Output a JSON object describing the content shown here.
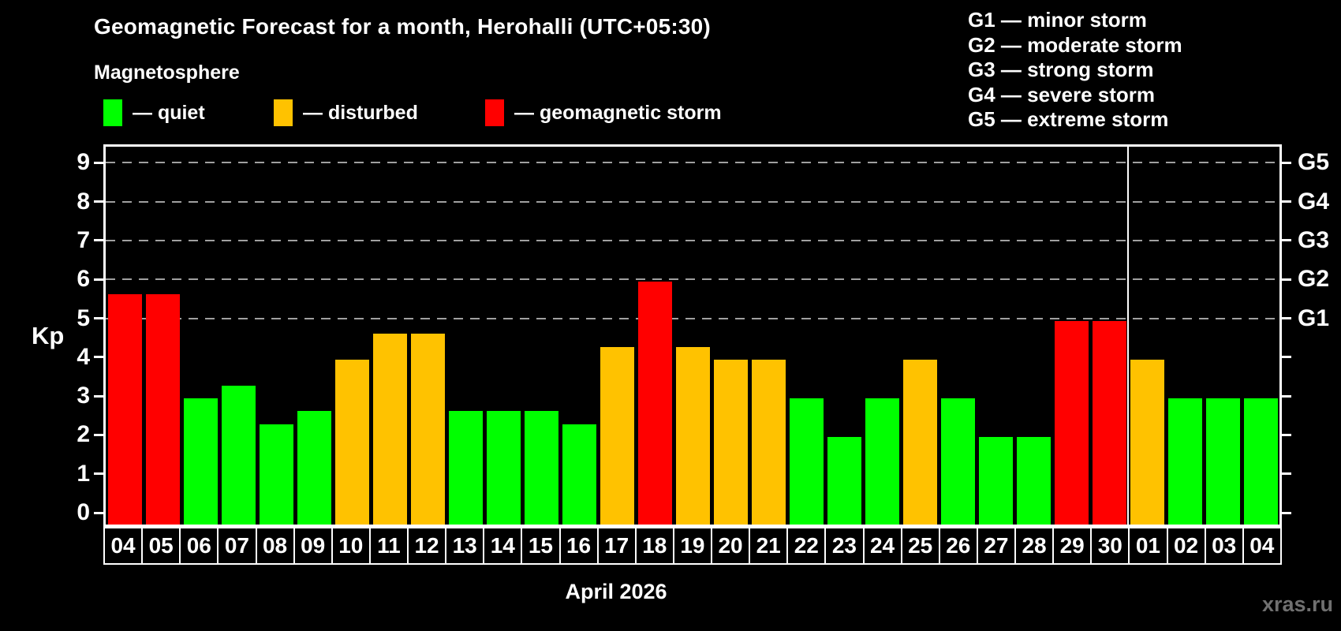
{
  "title": "Geomagnetic Forecast for a month, Herohalli (UTC+05:30)",
  "subtitle": "Magnetosphere",
  "legend": {
    "items": [
      {
        "key": "quiet",
        "label": "— quiet"
      },
      {
        "key": "disturbed",
        "label": "— disturbed"
      },
      {
        "key": "storm",
        "label": "— geomagnetic storm"
      }
    ]
  },
  "g_legend": {
    "lines": [
      "G1 — minor storm",
      "G2 — moderate storm",
      "G3 — strong storm",
      "G4 — severe storm",
      "G5 — extreme storm"
    ]
  },
  "y_axis": {
    "label": "Kp",
    "ticks": [
      0,
      1,
      2,
      3,
      4,
      5,
      6,
      7,
      8,
      9
    ]
  },
  "right_axis": {
    "labels": [
      {
        "text": "G1",
        "value": 5
      },
      {
        "text": "G2",
        "value": 6
      },
      {
        "text": "G3",
        "value": 7
      },
      {
        "text": "G4",
        "value": 8
      },
      {
        "text": "G5",
        "value": 9
      }
    ]
  },
  "x_axis": {
    "caption": "April 2026"
  },
  "watermark": "xras.ru",
  "colors": {
    "quiet": "#00ff00",
    "disturbed": "#ffc200",
    "storm": "#ff0000",
    "background": "#000000",
    "axis": "#ffffff",
    "gridline": "#a0a0a0",
    "watermark": "#707070"
  },
  "chart_data": {
    "type": "bar",
    "title": "Geomagnetic Forecast for a month, Herohalli (UTC+05:30)",
    "xlabel": "April 2026",
    "ylabel": "Kp",
    "ylim": [
      0,
      9
    ],
    "grid_values": [
      5,
      6,
      7,
      8,
      9
    ],
    "legend_position": "top-left",
    "month_boundary_after_index": 26,
    "categories": [
      "04",
      "05",
      "06",
      "07",
      "08",
      "09",
      "10",
      "11",
      "12",
      "13",
      "14",
      "15",
      "16",
      "17",
      "18",
      "19",
      "20",
      "21",
      "22",
      "23",
      "24",
      "25",
      "26",
      "27",
      "28",
      "29",
      "30",
      "01",
      "02",
      "03",
      "04"
    ],
    "values": [
      5.67,
      5.67,
      3,
      3.33,
      2.33,
      2.67,
      4,
      4.67,
      4.67,
      2.67,
      2.67,
      2.67,
      2.33,
      4.33,
      6,
      4.33,
      4,
      4,
      3,
      2,
      3,
      4,
      3,
      2,
      2,
      5,
      5,
      4,
      3,
      3,
      3
    ],
    "statuses": [
      "storm",
      "storm",
      "quiet",
      "quiet",
      "quiet",
      "quiet",
      "disturbed",
      "disturbed",
      "disturbed",
      "quiet",
      "quiet",
      "quiet",
      "quiet",
      "disturbed",
      "storm",
      "disturbed",
      "disturbed",
      "disturbed",
      "quiet",
      "quiet",
      "quiet",
      "disturbed",
      "quiet",
      "quiet",
      "quiet",
      "storm",
      "storm",
      "disturbed",
      "quiet",
      "quiet",
      "quiet"
    ]
  }
}
